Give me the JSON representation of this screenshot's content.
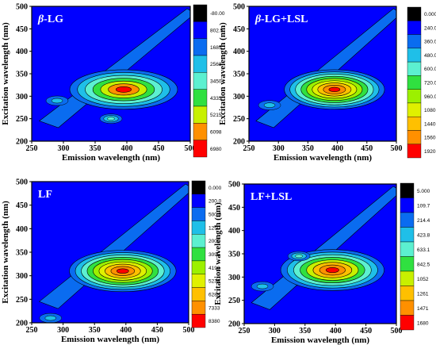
{
  "chart_data": [
    {
      "type": "heatmap",
      "subtype": "contour",
      "title": "β-LG",
      "title_italic_part": "β",
      "title_rest": "-LG",
      "xlabel": "Emission wavelength (nm)",
      "ylabel": "Excitation wavelength (nm)",
      "xlim": [
        250,
        500
      ],
      "ylim": [
        200,
        500
      ],
      "xticks": [
        "250",
        "300",
        "350",
        "400",
        "450",
        "500"
      ],
      "yticks": [
        "200",
        "250",
        "300",
        "350",
        "400",
        "450",
        "500"
      ],
      "colorbar_levels": [
        "-80.00",
        "802.5",
        "1685",
        "2568",
        "3450",
        "4333",
        "5215",
        "6098",
        "6980"
      ],
      "colorbar_colors": [
        "#000000",
        "#0000ff",
        "#0a6cf0",
        "#1fbfe8",
        "#5cf0d0",
        "#30e040",
        "#c8f000",
        "#ff9000",
        "#ff0000"
      ],
      "peaks": [
        {
          "x": 395,
          "y": 315,
          "intensity": 6980
        },
        {
          "x": 375,
          "y": 250,
          "intensity": 3450
        },
        {
          "x": 290,
          "y": 290,
          "intensity": 1685
        }
      ],
      "grid": false,
      "legend": "colorbar-right"
    },
    {
      "type": "heatmap",
      "subtype": "contour",
      "title": "β-LG+LSL",
      "title_italic_part": "β",
      "title_rest": "-LG+LSL",
      "xlabel": "Emission wavelength (nm)",
      "ylabel": "Excitation wavelength (nm)",
      "xlim": [
        250,
        500
      ],
      "ylim": [
        200,
        500
      ],
      "xticks": [
        "250",
        "300",
        "350",
        "400",
        "450",
        "500"
      ],
      "yticks": [
        "200",
        "250",
        "300",
        "350",
        "400",
        "450",
        "500"
      ],
      "colorbar_levels": [
        "0.000",
        "240.0",
        "360.0",
        "480.0",
        "600.0",
        "720.0",
        "960.0",
        "1080",
        "1440",
        "1560",
        "1920"
      ],
      "colorbar_colors": [
        "#000000",
        "#0000ff",
        "#0a6cf0",
        "#1fbfe8",
        "#5cf0d0",
        "#30e040",
        "#9cf000",
        "#e0f000",
        "#ffc000",
        "#ff9000",
        "#ff0000"
      ],
      "peaks": [
        {
          "x": 395,
          "y": 315,
          "intensity": 1920
        },
        {
          "x": 285,
          "y": 280,
          "intensity": 480
        }
      ],
      "grid": false,
      "legend": "colorbar-right"
    },
    {
      "type": "heatmap",
      "subtype": "contour",
      "title": "LF",
      "title_italic_part": "",
      "title_rest": "LF",
      "xlabel": "Emission wavelength (nm)",
      "ylabel": "Excitation wavelength (nm)",
      "xlim": [
        250,
        500
      ],
      "ylim": [
        200,
        500
      ],
      "xticks": [
        "250",
        "300",
        "350",
        "400",
        "450",
        "500"
      ],
      "yticks": [
        "200",
        "250",
        "300",
        "350",
        "400",
        "450",
        "500"
      ],
      "colorbar_levels": [
        "0.000",
        "200.0",
        "500.0",
        "1250",
        "2000",
        "3095",
        "4190",
        "5238",
        "6285",
        "7333",
        "8380"
      ],
      "colorbar_colors": [
        "#000000",
        "#0000ff",
        "#0a6cf0",
        "#1fbfe8",
        "#5cf0d0",
        "#30e040",
        "#9cf000",
        "#e0f000",
        "#ffc000",
        "#ff9000",
        "#ff0000"
      ],
      "peaks": [
        {
          "x": 395,
          "y": 310,
          "intensity": 8380
        },
        {
          "x": 280,
          "y": 210,
          "intensity": 500
        }
      ],
      "grid": false,
      "legend": "colorbar-right"
    },
    {
      "type": "heatmap",
      "subtype": "contour",
      "title": "LF+LSL",
      "title_italic_part": "",
      "title_rest": "LF+LSL",
      "xlabel": "Emission wavelength (nm)",
      "ylabel": "Excitation wavelength (nm)",
      "xlim": [
        250,
        500
      ],
      "ylim": [
        200,
        500
      ],
      "xticks": [
        "250",
        "300",
        "350",
        "400",
        "450",
        "500"
      ],
      "yticks": [
        "200",
        "250",
        "300",
        "350",
        "400",
        "450",
        "500"
      ],
      "colorbar_levels": [
        "5.000",
        "109.7",
        "214.4",
        "423.8",
        "633.1",
        "842.5",
        "1052",
        "1261",
        "1471",
        "1680"
      ],
      "colorbar_colors": [
        "#000000",
        "#0000ff",
        "#0a6cf0",
        "#1fbfe8",
        "#5cf0d0",
        "#30e040",
        "#c8f000",
        "#ffc000",
        "#ff9000",
        "#ff0000"
      ],
      "peaks": [
        {
          "x": 395,
          "y": 315,
          "intensity": 1680
        },
        {
          "x": 340,
          "y": 345,
          "intensity": 633.1
        },
        {
          "x": 280,
          "y": 280,
          "intensity": 423.8
        }
      ],
      "grid": false,
      "legend": "colorbar-right"
    }
  ]
}
